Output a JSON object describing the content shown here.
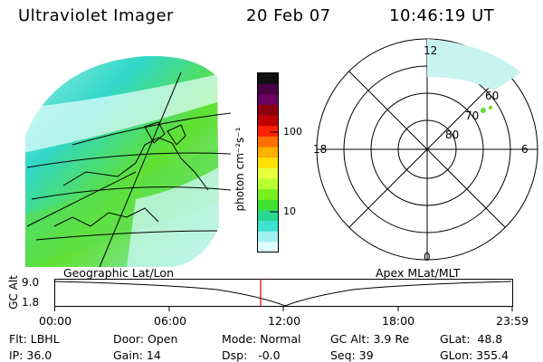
{
  "header": {
    "title": "Ultraviolet Imager",
    "date": "20 Feb 07",
    "time": "10:46:19 UT"
  },
  "colorbar": {
    "unit_label": "photon cm⁻²s⁻¹",
    "ticks": [
      "100",
      "10"
    ],
    "colors": [
      "#101010",
      "#4a0045",
      "#6a0060",
      "#8c0010",
      "#c00000",
      "#ff2000",
      "#ff7000",
      "#ffb000",
      "#ffe000",
      "#e8ff40",
      "#b8ff30",
      "#78f020",
      "#40e030",
      "#28d890",
      "#40e0d0",
      "#a0f0f0",
      "#e0ffff"
    ]
  },
  "polar": {
    "mlt_labels": {
      "top": "12",
      "bottom": "0",
      "left": "18",
      "right": "6"
    },
    "lat_labels": [
      "60",
      "70",
      "80"
    ]
  },
  "timeline": {
    "left_title": "Geographic Lat/Lon",
    "right_title": "Apex MLat/MLT",
    "axis_label": "GC Alt",
    "y_ticks": [
      "9.0",
      "1.8"
    ],
    "x_ticks": [
      "00:00",
      "06:00",
      "12:00",
      "18:00",
      "23:59"
    ],
    "marker_color": "#c00000"
  },
  "status": {
    "flt": "Flt: LBHL",
    "ip": "IP: 36.0",
    "door": "Door: Open",
    "gain": "Gain: 14",
    "mode": "Mode: Normal",
    "dsp": "Dsp:   -0.0",
    "gc_alt": "GC Alt: 3.9 Re",
    "seq": "Seq: 39",
    "glat": "GLat:  48.8",
    "glon": "GLon: 355.4"
  }
}
